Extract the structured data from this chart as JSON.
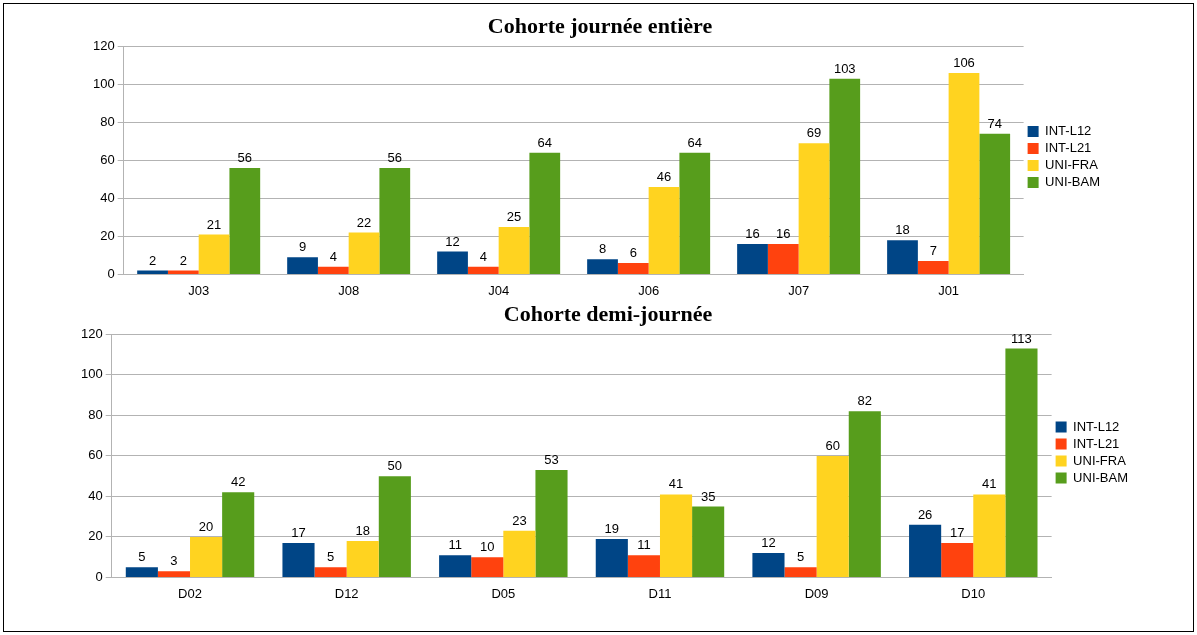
{
  "chart_data": [
    {
      "type": "bar",
      "title": "Cohorte journée entière",
      "categories": [
        "J03",
        "J08",
        "J04",
        "J06",
        "J07",
        "J01"
      ],
      "series": [
        {
          "name": "INT-L12",
          "color": "#004586",
          "values": [
            2,
            9,
            12,
            8,
            16,
            18
          ]
        },
        {
          "name": "INT-L21",
          "color": "#ff420e",
          "values": [
            2,
            4,
            4,
            6,
            16,
            7
          ]
        },
        {
          "name": "UNI-FRA",
          "color": "#ffd320",
          "values": [
            21,
            22,
            25,
            46,
            69,
            106
          ]
        },
        {
          "name": "UNI-BAM",
          "color": "#579d1c",
          "values": [
            56,
            56,
            64,
            64,
            103,
            74
          ]
        }
      ],
      "ylim": [
        0,
        120
      ],
      "yticks": [
        0,
        20,
        40,
        60,
        80,
        100,
        120
      ],
      "grid": "y",
      "legend": "right",
      "data_labels": true
    },
    {
      "type": "bar",
      "title": "Cohorte demi-journée",
      "categories": [
        "D02",
        "D12",
        "D05",
        "D11",
        "D09",
        "D10"
      ],
      "series": [
        {
          "name": "INT-L12",
          "color": "#004586",
          "values": [
            5,
            17,
            11,
            19,
            12,
            26
          ]
        },
        {
          "name": "INT-L21",
          "color": "#ff420e",
          "values": [
            3,
            5,
            10,
            11,
            5,
            17
          ]
        },
        {
          "name": "UNI-FRA",
          "color": "#ffd320",
          "values": [
            20,
            18,
            23,
            41,
            60,
            41
          ]
        },
        {
          "name": "UNI-BAM",
          "color": "#579d1c",
          "values": [
            42,
            50,
            53,
            35,
            82,
            113
          ]
        }
      ],
      "ylim": [
        0,
        120
      ],
      "yticks": [
        0,
        20,
        40,
        60,
        80,
        100,
        120
      ],
      "grid": "y",
      "legend": "right",
      "data_labels": true
    }
  ]
}
